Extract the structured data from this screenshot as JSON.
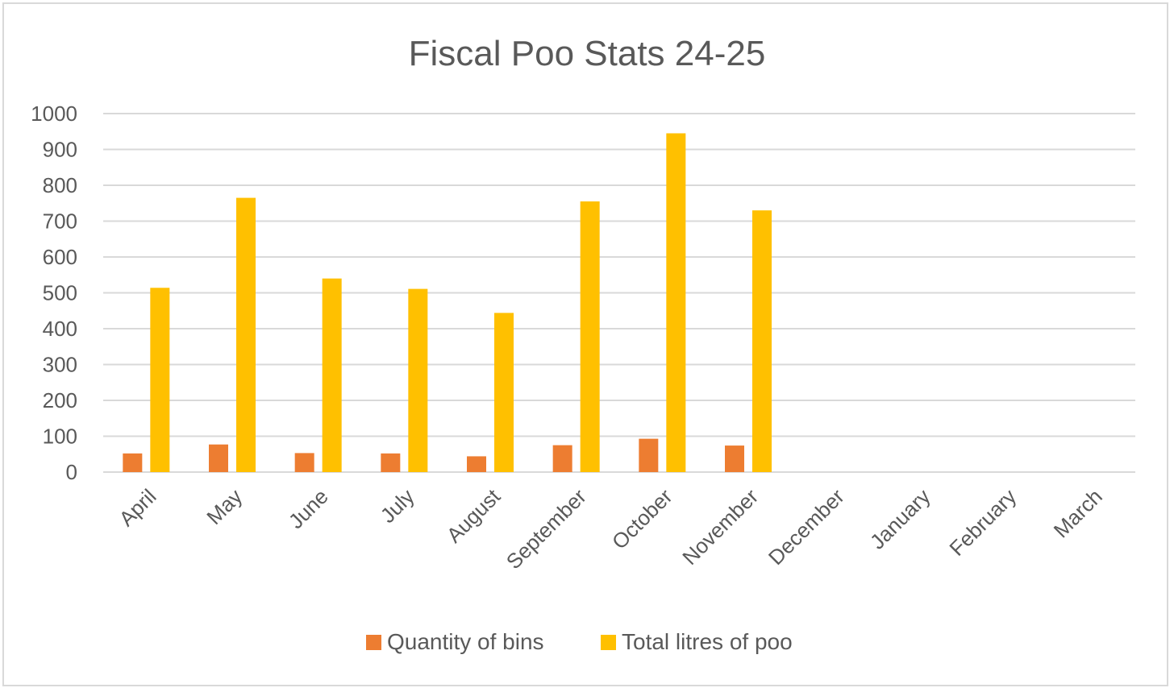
{
  "chart_data": {
    "type": "bar",
    "title": "Fiscal Poo Stats 24-25",
    "xlabel": "",
    "ylabel": "",
    "ylim": [
      0,
      1000
    ],
    "yticks": [
      0,
      100,
      200,
      300,
      400,
      500,
      600,
      700,
      800,
      900,
      1000
    ],
    "grid": true,
    "legend_position": "bottom",
    "categories": [
      "April",
      "May",
      "June",
      "July",
      "August",
      "September",
      "October",
      "November",
      "December",
      "January",
      "February",
      "March"
    ],
    "series": [
      {
        "name": "Quantity of bins",
        "color": "#ED7D31",
        "values": [
          52,
          77,
          53,
          52,
          44,
          75,
          93,
          74,
          null,
          null,
          null,
          null
        ]
      },
      {
        "name": "Total litres of poo",
        "color": "#FFC000",
        "values": [
          514,
          765,
          540,
          511,
          444,
          755,
          945,
          730,
          null,
          null,
          null,
          null
        ]
      }
    ]
  }
}
